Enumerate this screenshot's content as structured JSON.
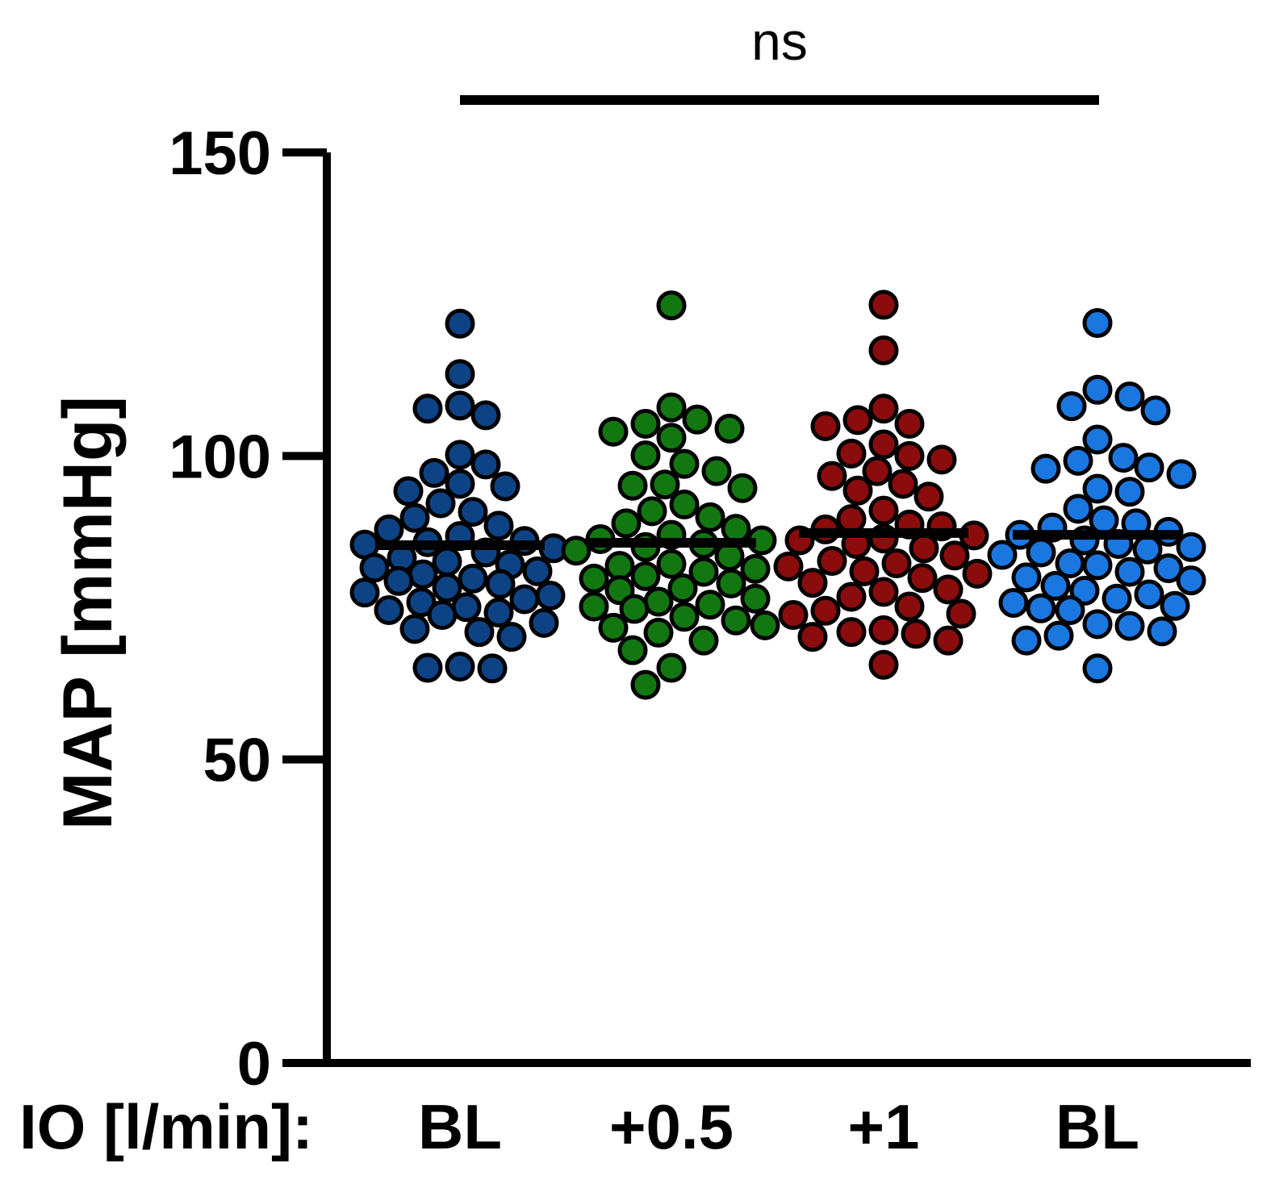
{
  "chart_data": {
    "type": "scatter",
    "title": "",
    "xlabel_prefix": "IO [l/min]:",
    "ylabel": "MAP [mmHg]",
    "ylim": [
      0,
      150
    ],
    "yticks": [
      "0",
      "50",
      "100",
      "150"
    ],
    "categories": [
      "BL",
      "+0.5",
      "+1",
      "BL"
    ],
    "annotation": "ns",
    "series": [
      {
        "name": "BL",
        "color": "#0d4384",
        "mean": 85.3,
        "values": [
          121.8,
          113.5,
          108.3,
          107.8,
          106.7,
          100.2,
          98.6,
          97.2,
          95.4,
          95.0,
          94.2,
          92.2,
          90.8,
          89.8,
          88.5,
          87.9,
          86.8,
          86.0,
          85.8,
          85.4,
          84.8,
          84.1,
          83.2,
          82.6,
          82.1,
          81.6,
          81.0,
          80.5,
          79.8,
          79.4,
          78.9,
          78.3,
          77.5,
          77.0,
          76.4,
          75.9,
          75.1,
          74.6,
          74.2,
          73.8,
          72.5,
          71.5,
          71.0,
          70.2,
          65.3,
          65.1,
          65.0
        ]
      },
      {
        "name": "+0.5",
        "color": "#127711",
        "mean": 85.7,
        "values": [
          124.8,
          108.0,
          106.0,
          105.3,
          104.5,
          104.0,
          103.0,
          100.1,
          98.7,
          97.5,
          95.3,
          95.1,
          94.7,
          92.0,
          90.9,
          89.9,
          88.9,
          88.0,
          87.0,
          86.3,
          86.1,
          85.5,
          85.0,
          84.4,
          83.5,
          82.2,
          81.9,
          81.4,
          80.9,
          80.2,
          79.8,
          79.0,
          78.2,
          77.9,
          76.5,
          76.0,
          75.5,
          75.2,
          74.8,
          73.5,
          72.9,
          72.1,
          71.7,
          70.9,
          69.6,
          68.0,
          65.1,
          62.3
        ]
      },
      {
        "name": "+1",
        "color": "#8b0c0d",
        "mean": 87.3,
        "values": [
          124.9,
          117.4,
          107.8,
          105.9,
          105.3,
          104.9,
          101.9,
          100.4,
          100.0,
          99.4,
          97.5,
          96.7,
          95.4,
          94.3,
          93.3,
          91.0,
          89.6,
          88.7,
          88.4,
          87.9,
          86.9,
          86.4,
          86.1,
          85.5,
          84.8,
          83.6,
          82.7,
          82.3,
          81.8,
          81.0,
          80.6,
          79.9,
          79.1,
          78.0,
          77.6,
          76.8,
          75.2,
          74.5,
          74.0,
          73.8,
          71.3,
          71.0,
          70.7,
          70.2,
          69.6,
          65.6
        ]
      },
      {
        "name": "BL",
        "color": "#1a77e0",
        "mean": 87.0,
        "values": [
          121.9,
          110.9,
          109.8,
          108.2,
          107.5,
          102.7,
          99.7,
          99.2,
          98.1,
          97.9,
          97.0,
          94.6,
          94.1,
          91.3,
          89.4,
          88.9,
          88.2,
          87.5,
          87.0,
          86.1,
          85.5,
          85.0,
          84.6,
          84.1,
          83.7,
          82.3,
          82.0,
          81.5,
          80.9,
          80.0,
          79.5,
          78.6,
          77.8,
          77.2,
          76.5,
          75.8,
          75.3,
          74.9,
          74.6,
          72.3,
          72.0,
          71.1,
          70.4,
          69.6,
          65.0
        ]
      }
    ]
  }
}
